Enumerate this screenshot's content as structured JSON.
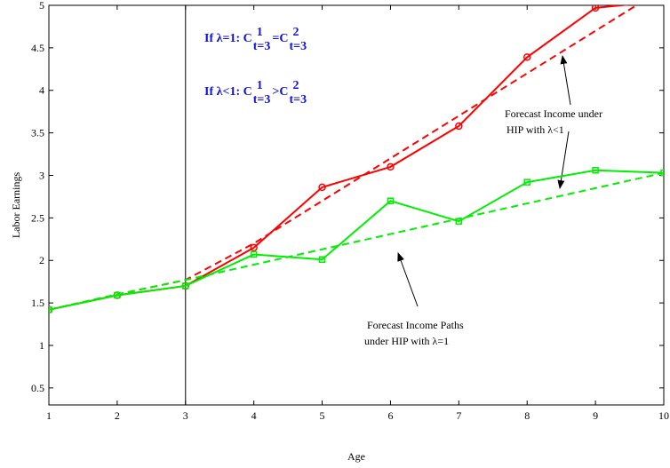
{
  "chart_data": {
    "type": "line",
    "xlabel": "Age",
    "ylabel": "Labor Earnings",
    "x": [
      1,
      2,
      3,
      4,
      5,
      6,
      7,
      8,
      9,
      10
    ],
    "series": [
      {
        "color": "#ff0000",
        "style": "solid",
        "marker": "circle",
        "values": [
          1.42,
          1.59,
          1.7,
          2.15,
          2.86,
          3.1,
          3.58,
          4.39,
          4.97,
          5.05
        ]
      },
      {
        "color": "#ff0000",
        "style": "dashed",
        "marker": null,
        "values": [
          1.42,
          1.6,
          1.77,
          2.2,
          2.7,
          3.2,
          3.7,
          4.2,
          4.7,
          5.2
        ]
      },
      {
        "color": "#00ee00",
        "style": "solid",
        "marker": "square",
        "values": [
          1.42,
          1.59,
          1.7,
          2.07,
          2.01,
          2.7,
          2.46,
          2.92,
          3.06,
          3.03
        ]
      },
      {
        "color": "#00ee00",
        "style": "dashed",
        "marker": null,
        "values": [
          1.42,
          1.6,
          1.77,
          1.95,
          2.13,
          2.31,
          2.49,
          2.67,
          2.85,
          3.03
        ]
      }
    ],
    "vline": 3,
    "xlim": [
      1,
      10
    ],
    "xticks": [
      1,
      2,
      3,
      4,
      5,
      6,
      7,
      8,
      9,
      10
    ],
    "ylim": [
      0.3,
      5
    ],
    "yticks": [
      0.5,
      1,
      1.5,
      2,
      2.5,
      3,
      3.5,
      4,
      4.5,
      5
    ],
    "formulas": [
      [
        {
          "t": "If λ=1: C"
        },
        {
          "sup": "1",
          "sub": "t=3"
        },
        {
          "t": "=C"
        },
        {
          "sup": "2",
          "sub": "t=3"
        }
      ],
      [
        {
          "t": "If λ<1: C"
        },
        {
          "sup": "1",
          "sub": "t=3"
        },
        {
          "t": ">C"
        },
        {
          "sup": "2",
          "sub": "t=3"
        }
      ]
    ],
    "annotations": [
      [
        "Forecast Income under",
        "HIP with  λ<1"
      ],
      [
        "Forecast Income Paths",
        "under HIP with  λ=1"
      ]
    ]
  }
}
